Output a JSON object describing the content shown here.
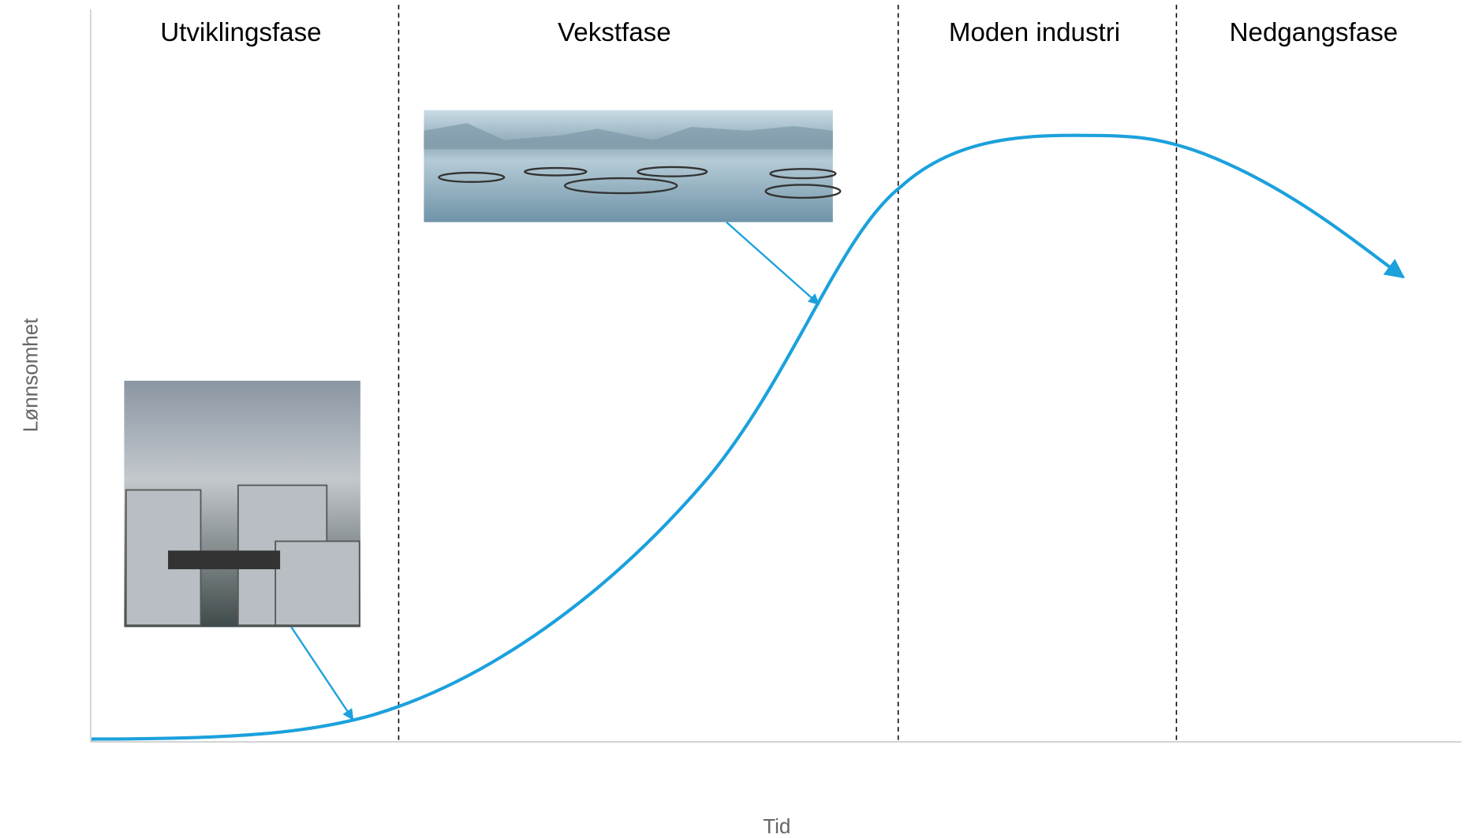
{
  "phases": [
    {
      "label": "Utviklingsfase"
    },
    {
      "label": "Vekstfase"
    },
    {
      "label": "Moden industri"
    },
    {
      "label": "Nedgangsfase"
    }
  ],
  "axes": {
    "y_label": "Lønnsomhet",
    "x_label": "Tid"
  }
}
